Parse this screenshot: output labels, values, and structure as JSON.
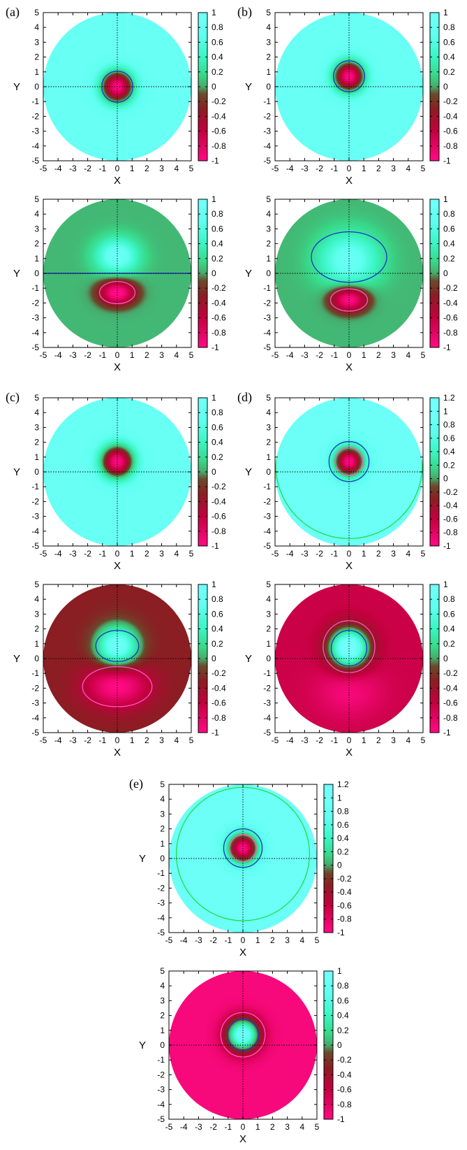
{
  "colors": {
    "scale": [
      {
        "v": -1.0,
        "c": "#ff0a84"
      },
      {
        "v": -0.6,
        "c": "#c4003f"
      },
      {
        "v": -0.3,
        "c": "#8a1e22"
      },
      {
        "v": -0.1,
        "c": "#6a4a2c"
      },
      {
        "v": 0.0,
        "c": "#48a86b"
      },
      {
        "v": 0.15,
        "c": "#39d787"
      },
      {
        "v": 0.4,
        "c": "#3af5c3"
      },
      {
        "v": 0.7,
        "c": "#5ffff0"
      },
      {
        "v": 1.0,
        "c": "#72fffb"
      }
    ],
    "blue_contour": "#2030c8",
    "magenta_contour": "#ff55cc",
    "green_contour": "#22dd44",
    "crosshair": "#000000"
  },
  "chart_data": [
    {
      "label": "(a)",
      "panel": "a-top",
      "type": "heatmap",
      "xlabel": "X",
      "ylabel": "Y",
      "xlim": [
        -5,
        5
      ],
      "ylim": [
        -5,
        5
      ],
      "xticks": [
        "-5",
        "-4",
        "-3",
        "-2",
        "-1",
        "0",
        "1",
        "2",
        "3",
        "4",
        "5"
      ],
      "yticks": [
        "5",
        "4",
        "3",
        "2",
        "1",
        "0",
        "-1",
        "-2",
        "-3",
        "-4",
        "-5"
      ],
      "colorbar": {
        "range": [
          -1,
          1
        ],
        "ticks": [
          "1",
          "0.8",
          "0.6",
          "0.4",
          "0.2",
          "0",
          "-0.2",
          "-0.4",
          "-0.6",
          "-0.8",
          "-1"
        ]
      },
      "field": {
        "bg": 0.85,
        "blobs": [
          {
            "cx": 0,
            "cy": 0,
            "amp": -1.85,
            "sigma": 0.78,
            "ry": 1
          }
        ],
        "lin": [
          0,
          0
        ]
      },
      "contours": [
        {
          "cx": 0,
          "cy": 0,
          "r": 1.05,
          "color": "blue"
        }
      ]
    },
    {
      "label": "(b)",
      "panel": "b-top",
      "type": "heatmap",
      "xlabel": "X",
      "ylabel": "Y",
      "xlim": [
        -5,
        5
      ],
      "ylim": [
        -5,
        5
      ],
      "xticks": [
        "-5",
        "-4",
        "-3",
        "-2",
        "-1",
        "0",
        "1",
        "2",
        "3",
        "4",
        "5"
      ],
      "yticks": [
        "5",
        "4",
        "3",
        "2",
        "1",
        "0",
        "-1",
        "-2",
        "-3",
        "-4",
        "-5"
      ],
      "colorbar": {
        "range": [
          -1,
          1
        ],
        "ticks": [
          "1",
          "0.8",
          "0.6",
          "0.4",
          "0.2",
          "0",
          "-0.2",
          "-0.4",
          "-0.6",
          "-0.8",
          "-1"
        ]
      },
      "field": {
        "bg": 0.85,
        "blobs": [
          {
            "cx": 0,
            "cy": 0.7,
            "amp": -1.85,
            "sigma": 0.75,
            "ry": 1
          }
        ],
        "lin": [
          0,
          0
        ]
      },
      "contours": [
        {
          "cx": 0,
          "cy": 0.7,
          "r": 1.05,
          "color": "blue"
        }
      ]
    },
    {
      "label": "",
      "panel": "a-bottom",
      "type": "heatmap",
      "xlabel": "X",
      "ylabel": "Y",
      "xlim": [
        -5,
        5
      ],
      "ylim": [
        -5,
        5
      ],
      "xticks": [
        "-5",
        "-4",
        "-3",
        "-2",
        "-1",
        "0",
        "1",
        "2",
        "3",
        "4",
        "5"
      ],
      "yticks": [
        "5",
        "4",
        "3",
        "2",
        "1",
        "0",
        "-1",
        "-2",
        "-3",
        "-4",
        "-5"
      ],
      "colorbar": {
        "range": [
          -1,
          1
        ],
        "ticks": [
          "1",
          "0.8",
          "0.6",
          "0.4",
          "0.2",
          "0",
          "-0.2",
          "-0.4",
          "-0.6",
          "-0.8",
          "-1"
        ]
      },
      "field": {
        "bg": 0.05,
        "blobs": [
          {
            "cx": 0,
            "cy": 1.15,
            "amp": 0.85,
            "sigma": 1.0,
            "ry": 0.85
          },
          {
            "cx": 0,
            "cy": -1.3,
            "amp": -1.15,
            "sigma": 0.85,
            "ry": 0.7
          }
        ],
        "lin": [
          0,
          0
        ]
      },
      "contours": [
        {
          "cx": 0,
          "cy": 0,
          "rx": 5,
          "ry": 0,
          "color": "blue",
          "line": true
        },
        {
          "cx": 0,
          "cy": -1.3,
          "rx": 1.2,
          "ry": 0.75,
          "color": "magenta"
        }
      ]
    },
    {
      "label": "",
      "panel": "b-bottom",
      "type": "heatmap",
      "xlabel": "X",
      "ylabel": "Y",
      "xlim": [
        -5,
        5
      ],
      "ylim": [
        -5,
        5
      ],
      "xticks": [
        "-5",
        "-4",
        "-3",
        "-2",
        "-1",
        "0",
        "1",
        "2",
        "3",
        "4",
        "5"
      ],
      "yticks": [
        "5",
        "4",
        "3",
        "2",
        "1",
        "0",
        "-1",
        "-2",
        "-3",
        "-4",
        "-5"
      ],
      "colorbar": {
        "range": [
          -1,
          1
        ],
        "ticks": [
          "1",
          "0.8",
          "0.6",
          "0.4",
          "0.2",
          "0",
          "-0.2",
          "-0.4",
          "-0.6",
          "-0.8",
          "-1"
        ]
      },
      "field": {
        "bg": 0.05,
        "blobs": [
          {
            "cx": 0,
            "cy": 0.9,
            "amp": 0.8,
            "sigma": 1.4,
            "ry": 0.9
          },
          {
            "cx": 0,
            "cy": -1.75,
            "amp": -1.15,
            "sigma": 0.85,
            "ry": 0.7
          }
        ],
        "lin": [
          0,
          0
        ]
      },
      "contours": [
        {
          "cx": 0,
          "cy": 1.1,
          "rx": 2.55,
          "ry": 1.7,
          "color": "blue"
        },
        {
          "cx": 0,
          "cy": -1.8,
          "rx": 1.25,
          "ry": 0.75,
          "color": "magenta"
        }
      ]
    },
    {
      "label": "(c)",
      "panel": "c-top",
      "type": "heatmap",
      "xlabel": "X",
      "ylabel": "Y",
      "xlim": [
        -5,
        5
      ],
      "ylim": [
        -5,
        5
      ],
      "xticks": [
        "-5",
        "-4",
        "-3",
        "-2",
        "-1",
        "0",
        "1",
        "2",
        "3",
        "4",
        "5"
      ],
      "yticks": [
        "5",
        "4",
        "3",
        "2",
        "1",
        "0",
        "-1",
        "-2",
        "-3",
        "-4",
        "-5"
      ],
      "colorbar": {
        "range": [
          -1,
          1
        ],
        "ticks": [
          "1",
          "0.8",
          "0.6",
          "0.4",
          "0.2",
          "0",
          "-0.2",
          "-0.4",
          "-0.6",
          "-0.8",
          "-1"
        ]
      },
      "field": {
        "bg": 0.85,
        "blobs": [
          {
            "cx": 0,
            "cy": 0.7,
            "amp": -1.85,
            "sigma": 0.8,
            "ry": 1
          }
        ],
        "lin": [
          0,
          0
        ]
      },
      "contours": []
    },
    {
      "label": "(d)",
      "panel": "d-top",
      "type": "heatmap",
      "xlabel": "X",
      "ylabel": "Y",
      "xlim": [
        -5,
        5
      ],
      "ylim": [
        -5,
        5
      ],
      "xticks": [
        "-5",
        "-4",
        "-3",
        "-2",
        "-1",
        "0",
        "1",
        "2",
        "3",
        "4",
        "5"
      ],
      "yticks": [
        "5",
        "4",
        "3",
        "2",
        "1",
        "0",
        "-1",
        "-2",
        "-3",
        "-4",
        "-5"
      ],
      "colorbar": {
        "range": [
          -1,
          1.2
        ],
        "ticks": [
          "1.2",
          "1",
          "0.8",
          "0.6",
          "0.4",
          "0.2",
          "0",
          "-0.2",
          "-0.4",
          "-0.6",
          "-0.8",
          "-1"
        ]
      },
      "field": {
        "bg": 0.9,
        "blobs": [
          {
            "cx": 0,
            "cy": 0.7,
            "amp": -1.9,
            "sigma": 0.72,
            "ry": 1
          }
        ],
        "lin": [
          0,
          0
        ]
      },
      "contours": [
        {
          "cx": 0,
          "cy": 0.7,
          "r": 1.35,
          "color": "blue"
        },
        {
          "cx": 0,
          "cy": 0.7,
          "r": 0.95,
          "color": "magenta"
        },
        {
          "cx": 0,
          "cy": 0.45,
          "r": 4.95,
          "color": "green",
          "arc": true
        }
      ]
    },
    {
      "label": "",
      "panel": "c-bottom",
      "type": "heatmap",
      "xlabel": "X",
      "ylabel": "Y",
      "xlim": [
        -5,
        5
      ],
      "ylim": [
        -5,
        5
      ],
      "xticks": [
        "-5",
        "-4",
        "-3",
        "-2",
        "-1",
        "0",
        "1",
        "2",
        "3",
        "4",
        "5"
      ],
      "yticks": [
        "5",
        "4",
        "3",
        "2",
        "1",
        "0",
        "-1",
        "-2",
        "-3",
        "-4",
        "-5"
      ],
      "colorbar": {
        "range": [
          -1,
          1
        ],
        "ticks": [
          "1",
          "0.8",
          "0.6",
          "0.4",
          "0.2",
          "0",
          "-0.2",
          "-0.4",
          "-0.6",
          "-0.8",
          "-1"
        ]
      },
      "field": {
        "bg": -0.3,
        "blobs": [
          {
            "cx": 0,
            "cy": 0.8,
            "amp": 1.25,
            "sigma": 1.0,
            "ry": 1
          },
          {
            "cx": 0,
            "cy": -1.8,
            "amp": -0.75,
            "sigma": 1.5,
            "ry": 0.7
          }
        ],
        "lin": [
          0,
          0
        ]
      },
      "contours": [
        {
          "cx": 0,
          "cy": 0.85,
          "rx": 1.45,
          "ry": 1.05,
          "color": "blue"
        },
        {
          "cx": 0,
          "cy": -1.9,
          "rx": 2.35,
          "ry": 1.35,
          "color": "magenta"
        }
      ]
    },
    {
      "label": "",
      "panel": "d-bottom",
      "type": "heatmap",
      "xlabel": "X",
      "ylabel": "Y",
      "xlim": [
        -5,
        5
      ],
      "ylim": [
        -5,
        5
      ],
      "xticks": [
        "-5",
        "-4",
        "-3",
        "-2",
        "-1",
        "0",
        "1",
        "2",
        "3",
        "4",
        "5"
      ],
      "yticks": [
        "5",
        "4",
        "3",
        "2",
        "1",
        "0",
        "-1",
        "-2",
        "-3",
        "-4",
        "-5"
      ],
      "colorbar": {
        "range": [
          -1,
          1
        ],
        "ticks": [
          "1",
          "0.8",
          "0.6",
          "0.4",
          "0.2",
          "0",
          "-0.2",
          "-0.4",
          "-0.6",
          "-0.8",
          "-1"
        ]
      },
      "field": {
        "bg": -0.65,
        "blobs": [
          {
            "cx": 0,
            "cy": 0.7,
            "amp": 1.8,
            "sigma": 0.95,
            "ry": 1
          },
          {
            "cx": 0,
            "cy": -2.2,
            "amp": -0.3,
            "sigma": 1.6,
            "ry": 0.8
          }
        ],
        "lin": [
          0,
          0
        ]
      },
      "contours": [
        {
          "cx": 0,
          "cy": 0.7,
          "r": 1.2,
          "color": "blue"
        },
        {
          "cx": 0,
          "cy": 0.8,
          "r": 1.75,
          "color": "magenta"
        }
      ]
    },
    {
      "label": "(e)",
      "panel": "e-top",
      "type": "heatmap",
      "xlabel": "X",
      "ylabel": "Y",
      "xlim": [
        -5,
        5
      ],
      "ylim": [
        -5,
        5
      ],
      "xticks": [
        "-5",
        "-4",
        "-3",
        "-2",
        "-1",
        "0",
        "1",
        "2",
        "3",
        "4",
        "5"
      ],
      "yticks": [
        "5",
        "4",
        "3",
        "2",
        "1",
        "0",
        "-1",
        "-2",
        "-3",
        "-4",
        "-5"
      ],
      "colorbar": {
        "range": [
          -1,
          1.2
        ],
        "ticks": [
          "1.2",
          "1",
          "0.8",
          "0.6",
          "0.4",
          "0.2",
          "0",
          "-0.2",
          "-0.4",
          "-0.6",
          "-0.8",
          "-1"
        ]
      },
      "field": {
        "bg": 0.9,
        "blobs": [
          {
            "cx": 0,
            "cy": 0.7,
            "amp": -1.9,
            "sigma": 0.72,
            "ry": 1
          }
        ],
        "lin": [
          0,
          0
        ]
      },
      "contours": [
        {
          "cx": 0,
          "cy": 0.7,
          "r": 1.3,
          "color": "blue"
        },
        {
          "cx": 0,
          "cy": 0.7,
          "r": 0.9,
          "color": "magenta"
        },
        {
          "cx": 0,
          "cy": 0.3,
          "r": 4.5,
          "color": "green",
          "arc": true
        }
      ]
    },
    {
      "label": "",
      "panel": "e-bottom",
      "type": "heatmap",
      "xlabel": "X",
      "ylabel": "Y",
      "xlim": [
        -5,
        5
      ],
      "ylim": [
        -5,
        5
      ],
      "xticks": [
        "-5",
        "-4",
        "-3",
        "-2",
        "-1",
        "0",
        "1",
        "2",
        "3",
        "4",
        "5"
      ],
      "yticks": [
        "5",
        "4",
        "3",
        "2",
        "1",
        "0",
        "-1",
        "-2",
        "-3",
        "-4",
        "-5"
      ],
      "colorbar": {
        "range": [
          -1,
          1
        ],
        "ticks": [
          "1",
          "0.8",
          "0.6",
          "0.4",
          "0.2",
          "0",
          "-0.2",
          "-0.4",
          "-0.6",
          "-0.8",
          "-1"
        ]
      },
      "field": {
        "bg": -0.95,
        "blobs": [
          {
            "cx": 0,
            "cy": 0.7,
            "amp": 1.9,
            "sigma": 0.8,
            "ry": 1
          }
        ],
        "lin": [
          0,
          0
        ]
      },
      "contours": [
        {
          "cx": 0,
          "cy": 0.7,
          "r": 1.05,
          "color": "blue"
        },
        {
          "cx": 0,
          "cy": 0.7,
          "r": 1.5,
          "color": "magenta"
        }
      ]
    }
  ]
}
